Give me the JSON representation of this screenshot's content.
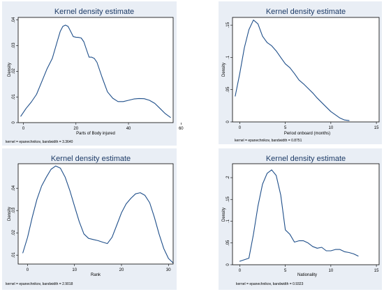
{
  "chart_data": [
    {
      "type": "line",
      "title": "Kernel density estimate",
      "xlabel": "Parts of Body injured",
      "ylabel": "Density",
      "note": "kernel = epanechnikov, bandwidth = 3.3640",
      "xlim": [
        -2,
        57
      ],
      "ylim": [
        0,
        0.041
      ],
      "xticks": [
        0,
        20,
        40,
        60
      ],
      "xtick_labels": [
        "0",
        "20",
        "40",
        "60"
      ],
      "yticks": [
        0,
        0.01,
        0.02,
        0.03,
        0.04
      ],
      "ytick_labels": [
        "0",
        ".01",
        ".02",
        ".03",
        ".04"
      ],
      "color": "#1f4f8a",
      "x": [
        -1,
        1,
        3,
        5,
        7,
        9,
        11,
        13,
        14,
        15,
        16,
        17,
        18,
        19,
        20,
        21,
        22,
        23,
        24,
        25,
        26,
        27,
        28,
        30,
        32,
        34,
        36,
        38,
        40,
        42,
        44,
        46,
        48,
        50,
        52,
        54,
        56
      ],
      "y": [
        0.0025,
        0.0055,
        0.008,
        0.011,
        0.016,
        0.021,
        0.025,
        0.032,
        0.0355,
        0.0375,
        0.038,
        0.0375,
        0.0355,
        0.0335,
        0.0333,
        0.0332,
        0.033,
        0.0315,
        0.0285,
        0.0255,
        0.0255,
        0.025,
        0.0235,
        0.0175,
        0.012,
        0.0095,
        0.0082,
        0.0082,
        0.0087,
        0.0092,
        0.0094,
        0.0093,
        0.0087,
        0.0075,
        0.0055,
        0.0035,
        0.002
      ]
    },
    {
      "type": "line",
      "title": "Kernel density estimate",
      "xlabel": "Period  onboard (months)",
      "ylabel": "Density",
      "note": "kernel = epanechnikov, bandwidth = 0.8751",
      "xlim": [
        -0.8,
        15.3
      ],
      "ylim": [
        0,
        0.162
      ],
      "xticks": [
        0,
        5,
        10,
        15
      ],
      "xtick_labels": [
        "0",
        "5",
        "10",
        "15"
      ],
      "yticks": [
        0,
        0.05,
        0.1,
        0.15
      ],
      "ytick_labels": [
        "0",
        ".05",
        ".1",
        ".15"
      ],
      "color": "#1f4f8a",
      "x": [
        -0.5,
        0,
        0.5,
        1,
        1.5,
        2,
        2.5,
        3,
        3.5,
        4,
        4.5,
        5,
        5.5,
        6,
        6.5,
        7,
        7.5,
        8,
        8.5,
        9,
        9.5,
        10,
        10.5,
        11,
        11.5,
        12
      ],
      "y": [
        0.04,
        0.075,
        0.115,
        0.143,
        0.158,
        0.152,
        0.133,
        0.123,
        0.118,
        0.11,
        0.1,
        0.09,
        0.084,
        0.075,
        0.065,
        0.059,
        0.052,
        0.045,
        0.037,
        0.03,
        0.023,
        0.016,
        0.011,
        0.006,
        0.003,
        0.002
      ]
    },
    {
      "type": "line",
      "title": "Kernel density estimate",
      "xlabel": "Rank",
      "ylabel": "Density",
      "note": "kernel = epanechnikov, bandwidth = 2.9018",
      "xlim": [
        -2,
        31
      ],
      "ylim": [
        0.006,
        0.051
      ],
      "xticks": [
        0,
        10,
        20,
        30
      ],
      "xtick_labels": [
        "0",
        "10",
        "20",
        "30"
      ],
      "yticks": [
        0.01,
        0.02,
        0.03,
        0.04
      ],
      "ytick_labels": [
        ".01",
        ".02",
        ".03",
        ".04"
      ],
      "color": "#1f4f8a",
      "x": [
        -1,
        0,
        1,
        2,
        3,
        4,
        5,
        6,
        7,
        8,
        9,
        10,
        11,
        12,
        13,
        14,
        15,
        16,
        17,
        18,
        19,
        20,
        21,
        22,
        23,
        24,
        25,
        26,
        27,
        28,
        29,
        30,
        31
      ],
      "y": [
        0.011,
        0.018,
        0.027,
        0.035,
        0.041,
        0.045,
        0.0485,
        0.05,
        0.049,
        0.045,
        0.039,
        0.032,
        0.025,
        0.0195,
        0.0175,
        0.017,
        0.0165,
        0.0158,
        0.0152,
        0.018,
        0.0235,
        0.029,
        0.033,
        0.0355,
        0.0375,
        0.038,
        0.0368,
        0.0335,
        0.027,
        0.0195,
        0.013,
        0.0085,
        0.0065
      ]
    },
    {
      "type": "line",
      "title": "Kernel density estimate",
      "xlabel": "Nationality",
      "ylabel": "Density",
      "note": "kernel = epanechnikov, bandwidth = 0.9323",
      "xlim": [
        -0.8,
        15.3
      ],
      "ylim": [
        0,
        0.232
      ],
      "xticks": [
        0,
        5,
        10,
        15
      ],
      "xtick_labels": [
        "0",
        "5",
        "10",
        "15"
      ],
      "yticks": [
        0,
        0.05,
        0.1,
        0.15,
        0.2
      ],
      "ytick_labels": [
        "0",
        ".05",
        ".1",
        ".15",
        ".2"
      ],
      "color": "#1f4f8a",
      "x": [
        0,
        1,
        1.5,
        2,
        2.5,
        3,
        3.5,
        4,
        4.5,
        5,
        5.5,
        6,
        6.5,
        7,
        7.5,
        8,
        8.5,
        9,
        9.5,
        10,
        10.5,
        11,
        11.5,
        12,
        12.5,
        13
      ],
      "y": [
        0.008,
        0.015,
        0.07,
        0.135,
        0.185,
        0.21,
        0.218,
        0.205,
        0.16,
        0.08,
        0.07,
        0.052,
        0.055,
        0.055,
        0.05,
        0.042,
        0.038,
        0.04,
        0.032,
        0.032,
        0.035,
        0.035,
        0.03,
        0.028,
        0.025,
        0.02
      ]
    }
  ]
}
